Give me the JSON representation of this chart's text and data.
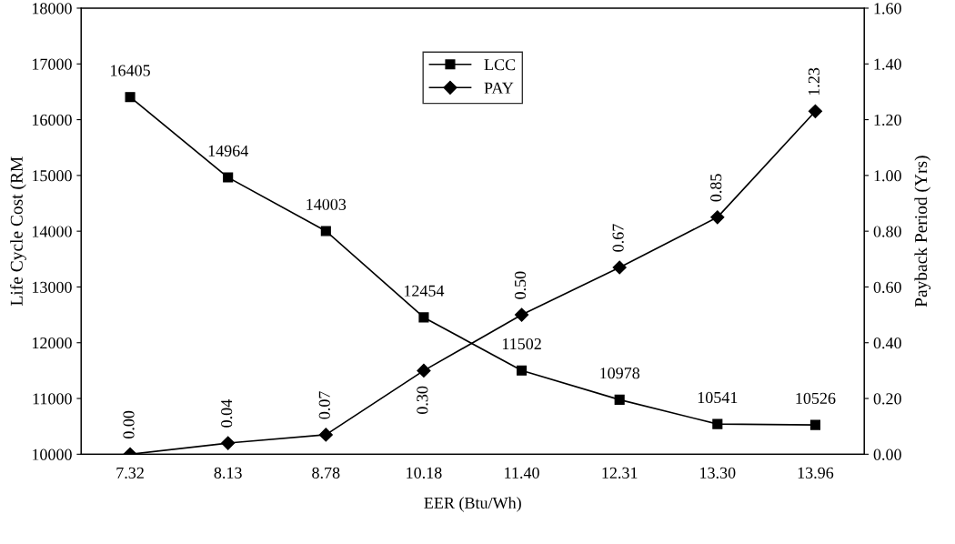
{
  "chart_data": {
    "type": "line",
    "xlabel": "EER (Btu/Wh)",
    "ylabel": "Life Cycle Cost (RM",
    "y2label": "Payback Period (Yrs)",
    "categories": [
      "7.32",
      "8.13",
      "8.78",
      "10.18",
      "11.40",
      "12.31",
      "13.30",
      "13.96"
    ],
    "series": [
      {
        "name": "LCC",
        "color": "#000000",
        "marker": "square",
        "values": [
          16405,
          14964,
          14003,
          12454,
          11502,
          10978,
          10541,
          10526
        ],
        "value_labels": [
          "16405",
          "14964",
          "14003",
          "12454",
          "11502",
          "10978",
          "10541",
          "10526"
        ]
      },
      {
        "name": "PAY",
        "color": "#000000",
        "marker": "diamond",
        "axis": "y2",
        "values": [
          0.0,
          0.04,
          0.07,
          0.3,
          0.5,
          0.67,
          0.85,
          1.23
        ],
        "value_labels": [
          "0.00",
          "0.04",
          "0.07",
          "0.30",
          "0.50",
          "0.67",
          "0.85",
          "1.23"
        ]
      }
    ],
    "ylim": [
      10000,
      18000
    ],
    "yticks": [
      10000,
      11000,
      12000,
      13000,
      14000,
      15000,
      16000,
      17000,
      18000
    ],
    "y2lim": [
      0,
      1.6
    ],
    "y2ticks": [
      {
        "value": 0,
        "label": "0.00"
      },
      {
        "value": 0.2,
        "label": "0.20"
      },
      {
        "value": 0.4,
        "label": "0.40"
      },
      {
        "value": 0.6,
        "label": "0.60"
      },
      {
        "value": 0.8,
        "label": "0.80"
      },
      {
        "value": 1.0,
        "label": "1.00"
      },
      {
        "value": 1.2,
        "label": "1.20"
      },
      {
        "value": 1.4,
        "label": "1.40"
      },
      {
        "value": 1.6,
        "label": "1.60"
      }
    ],
    "grid": false,
    "legend": "top",
    "line_style": "solid"
  }
}
